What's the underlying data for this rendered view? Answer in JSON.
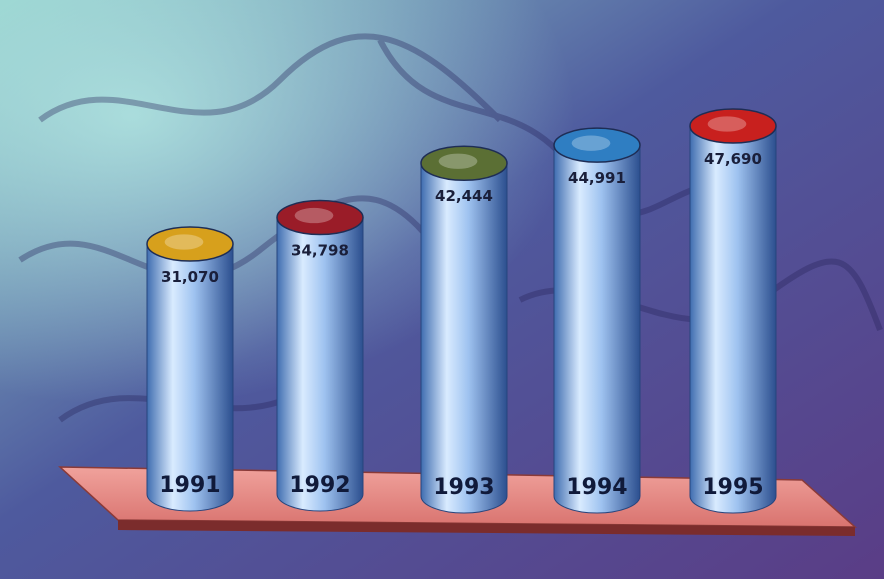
{
  "chart_data": {
    "type": "bar",
    "title": "",
    "xlabel": "",
    "ylabel": "",
    "categories": [
      "1991",
      "1992",
      "1993",
      "1994",
      "1995"
    ],
    "values": [
      31070,
      34798,
      42444,
      44991,
      47690
    ],
    "value_labels": [
      "31,070",
      "34,798",
      "42,444",
      "44,991",
      "47,690"
    ],
    "style": "3d-cylinder",
    "top_colors": [
      "#d7a01c",
      "#9a1c28",
      "#5b6f34",
      "#2f7ec2",
      "#c8201e"
    ],
    "bar_color": "#9fc3f0",
    "platform_color": "#e38a84",
    "background_colors": [
      "#8ecbc9",
      "#4e5a9e",
      "#5a3d86"
    ]
  }
}
